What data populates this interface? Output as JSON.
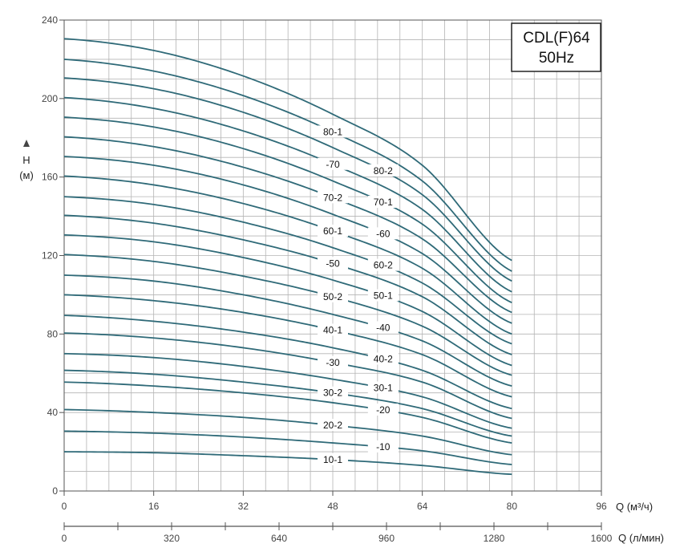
{
  "chart_data": {
    "type": "line",
    "model_label": "CDL(F)64",
    "frequency_label": "50Hz",
    "y_axis": {
      "label_letter": "H",
      "label_unit": "(м)",
      "range": [
        0,
        240
      ],
      "ticks": [
        "0",
        "40",
        "80",
        "120",
        "160",
        "200",
        "240"
      ],
      "tick_values": [
        0,
        40,
        80,
        120,
        160,
        200,
        240
      ],
      "grid_step": 10
    },
    "x_axis": {
      "label": "Q (м³/ч)",
      "range": [
        0,
        96
      ],
      "ticks": [
        "0",
        "16",
        "32",
        "48",
        "64",
        "80",
        "96"
      ],
      "tick_values": [
        0,
        16,
        32,
        48,
        64,
        80,
        96
      ],
      "grid_step": 4
    },
    "x2_axis": {
      "label": "Q (л/мин)",
      "range": [
        0,
        1600
      ],
      "ticks": [
        "0",
        "320",
        "640",
        "960",
        "1280",
        "1600"
      ],
      "tick_values": [
        0,
        320,
        640,
        960,
        1280,
        1600
      ],
      "minor_step": 160
    },
    "grid": true,
    "curve_color": "#2f6a78",
    "x": [
      0,
      16,
      32,
      48,
      64,
      80
    ],
    "series": [
      {
        "name": "10-1",
        "values": [
          20,
          19.5,
          18,
          16,
          13,
          8.5
        ]
      },
      {
        "name": "-10",
        "values": [
          30.5,
          29.5,
          27.5,
          24.5,
          20.5,
          13.5
        ]
      },
      {
        "name": "20-2",
        "values": [
          41.5,
          40,
          37.5,
          33.5,
          28,
          18.5
        ]
      },
      {
        "name": "-20",
        "values": [
          55.5,
          53.5,
          50,
          45,
          37.5,
          24.5
        ]
      },
      {
        "name": "30-2",
        "values": [
          61.5,
          59.5,
          55.5,
          50,
          42,
          28
        ]
      },
      {
        "name": "30-1",
        "values": [
          70,
          68,
          63.5,
          57,
          48,
          32
        ]
      },
      {
        "name": "-30",
        "values": [
          80.5,
          78,
          73,
          65.5,
          55.5,
          37
        ]
      },
      {
        "name": "40-2",
        "values": [
          89.5,
          86.5,
          81,
          73,
          61.5,
          42
        ]
      },
      {
        "name": "40-1",
        "values": [
          100,
          97,
          91,
          82,
          69.5,
          48
        ]
      },
      {
        "name": "-40",
        "values": [
          110,
          107,
          100,
          90,
          76.5,
          53.5
        ]
      },
      {
        "name": "50-2",
        "values": [
          120.5,
          117,
          109.5,
          99,
          84,
          59
        ]
      },
      {
        "name": "50-1",
        "values": [
          130.5,
          127,
          119,
          107.5,
          91.5,
          64
        ]
      },
      {
        "name": "-50",
        "values": [
          140.5,
          136.5,
          128,
          116,
          99,
          69.5
        ]
      },
      {
        "name": "60-2",
        "values": [
          150,
          146,
          137,
          124,
          106,
          75
        ]
      },
      {
        "name": "60-1",
        "values": [
          160.5,
          156,
          146.5,
          132.5,
          113.5,
          80
        ]
      },
      {
        "name": "-60",
        "values": [
          170.5,
          166,
          156,
          141,
          121,
          85.5
        ]
      },
      {
        "name": "70-2",
        "values": [
          180.5,
          175.5,
          165,
          149.5,
          128.5,
          91
        ]
      },
      {
        "name": "70-1",
        "values": [
          190.5,
          185.5,
          174.5,
          158,
          136,
          96
        ]
      },
      {
        "name": "-70",
        "values": [
          200.5,
          195,
          183.5,
          166.5,
          143.5,
          101.5
        ]
      },
      {
        "name": "80-2",
        "values": [
          210.5,
          205,
          193,
          175,
          151,
          107
        ]
      },
      {
        "name": "80-1",
        "values": [
          220,
          214,
          201.5,
          183,
          158,
          112
        ]
      },
      {
        "name": "",
        "values": [
          230.5,
          224.5,
          211.5,
          192,
          166,
          117.5
        ]
      }
    ]
  }
}
